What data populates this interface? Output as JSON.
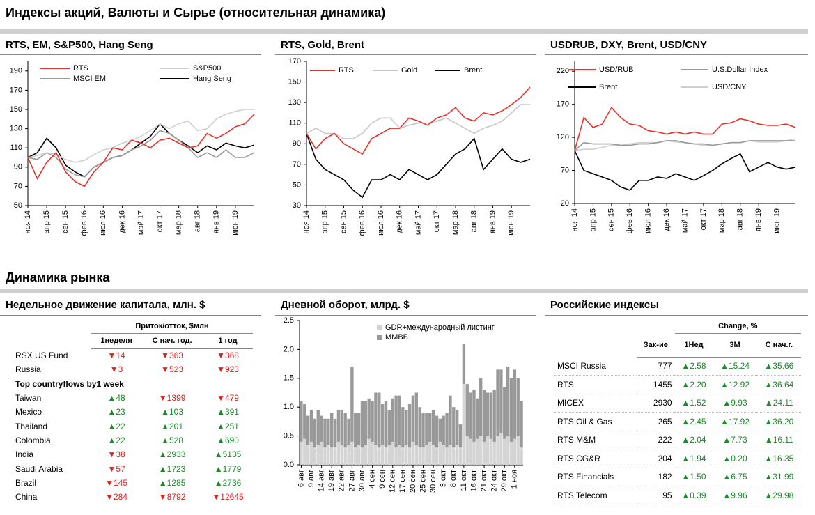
{
  "title": "Индексы акций, Валюты и  Сырье (относительная динамика)",
  "section_title": "Динамика рынка",
  "chart_data": [
    {
      "type": "line",
      "title": "RTS, EM, S&P500, Hang Seng",
      "categories": [
        "ноя 14",
        null,
        "апр 15",
        null,
        "сен 15",
        null,
        "фев 16",
        null,
        "июл 16",
        null,
        "дек 16",
        null,
        "май 17",
        null,
        "окт 17",
        null,
        "мар 18",
        null,
        "авг 18",
        null,
        "янв 19",
        null,
        "июн 19",
        null,
        null
      ],
      "ylim": [
        50,
        200
      ],
      "yticks": [
        50,
        70,
        90,
        110,
        130,
        150,
        170,
        190
      ],
      "series": [
        {
          "name": "RTS",
          "color": "#e8322b",
          "values": [
            100,
            78,
            95,
            105,
            85,
            75,
            70,
            85,
            95,
            110,
            108,
            118,
            115,
            110,
            118,
            120,
            115,
            110,
            112,
            125,
            120,
            125,
            132,
            135,
            145
          ]
        },
        {
          "name": "S&P500",
          "color": "#d0d0d0",
          "values": [
            100,
            102,
            105,
            103,
            98,
            95,
            97,
            103,
            108,
            110,
            115,
            118,
            122,
            128,
            135,
            130,
            135,
            138,
            128,
            130,
            140,
            145,
            148,
            150,
            150
          ]
        },
        {
          "name": "MSCI EM",
          "color": "#999999",
          "values": [
            100,
            98,
            105,
            100,
            88,
            82,
            80,
            90,
            95,
            100,
            102,
            108,
            112,
            118,
            128,
            125,
            118,
            110,
            100,
            105,
            100,
            108,
            100,
            100,
            105
          ]
        },
        {
          "name": "Hang Seng",
          "color": "#000000",
          "values": [
            100,
            105,
            120,
            110,
            92,
            85,
            80,
            90,
            95,
            100,
            102,
            108,
            115,
            122,
            135,
            125,
            118,
            112,
            105,
            112,
            108,
            115,
            112,
            110,
            113
          ]
        }
      ]
    },
    {
      "type": "line",
      "title": "RTS, Gold, Brent",
      "categories": [
        "ноя 14",
        null,
        "апр 15",
        null,
        "сен 15",
        null,
        "фев 16",
        null,
        "июл 16",
        null,
        "дек 16",
        null,
        "май 17",
        null,
        "окт 17",
        null,
        "мар 18",
        null,
        "авг 18",
        null,
        "янв 19",
        null,
        "июн 19",
        null,
        null
      ],
      "ylim": [
        30,
        170
      ],
      "yticks": [
        30,
        50,
        70,
        90,
        110,
        130,
        150,
        170
      ],
      "series": [
        {
          "name": "RTS",
          "color": "#e8322b",
          "values": [
            100,
            85,
            95,
            100,
            90,
            85,
            80,
            95,
            100,
            105,
            105,
            115,
            112,
            108,
            115,
            118,
            125,
            115,
            112,
            120,
            118,
            122,
            128,
            135,
            145
          ]
        },
        {
          "name": "Gold",
          "color": "#c8c8c8",
          "values": [
            100,
            105,
            100,
            100,
            95,
            95,
            100,
            110,
            115,
            115,
            105,
            108,
            110,
            110,
            112,
            115,
            110,
            105,
            100,
            105,
            108,
            112,
            120,
            128,
            128
          ]
        },
        {
          "name": "Brent",
          "color": "#000000",
          "values": [
            100,
            75,
            65,
            60,
            55,
            45,
            38,
            55,
            55,
            60,
            55,
            65,
            60,
            55,
            60,
            70,
            80,
            85,
            95,
            65,
            75,
            85,
            75,
            72,
            75
          ]
        }
      ]
    },
    {
      "type": "line",
      "title": "USDRUB, DXY, Brent, USD/CNY",
      "categories": [
        "ноя 14",
        null,
        "апр 15",
        null,
        "сен 15",
        null,
        "фев 16",
        null,
        "июл 16",
        null,
        "дек 16",
        null,
        "май 17",
        null,
        "окт 17",
        null,
        "мар 18",
        null,
        "авг 18",
        null,
        "янв 19",
        null,
        "июн 19",
        null,
        null
      ],
      "ylim": [
        20,
        235
      ],
      "yticks": [
        20,
        70,
        120,
        170,
        220
      ],
      "series": [
        {
          "name": "USD/RUB",
          "color": "#e8322b",
          "values": [
            100,
            150,
            135,
            140,
            165,
            150,
            140,
            138,
            130,
            128,
            125,
            128,
            125,
            128,
            125,
            125,
            140,
            142,
            148,
            145,
            140,
            138,
            138,
            140,
            135
          ]
        },
        {
          "name": "U.S.Dollar Index",
          "color": "#999999",
          "values": [
            100,
            112,
            110,
            110,
            110,
            108,
            108,
            110,
            110,
            112,
            115,
            115,
            112,
            110,
            110,
            108,
            110,
            112,
            112,
            115,
            115,
            115,
            115,
            115,
            115
          ]
        },
        {
          "name": "Brent",
          "color": "#000000",
          "values": [
            100,
            70,
            65,
            60,
            55,
            45,
            40,
            55,
            55,
            60,
            58,
            65,
            60,
            55,
            62,
            70,
            80,
            88,
            95,
            68,
            75,
            82,
            75,
            72,
            75
          ]
        },
        {
          "name": "USD/CNY",
          "color": "#d0d0d0",
          "values": [
            100,
            102,
            102,
            105,
            108,
            108,
            110,
            112,
            112,
            112,
            115,
            113,
            112,
            110,
            108,
            108,
            110,
            112,
            112,
            115,
            113,
            113,
            113,
            115,
            118
          ]
        }
      ]
    },
    {
      "type": "bar",
      "stacked": true,
      "title": "Дневной оборот, млрд. $",
      "categories": [
        "6 авг",
        null,
        null,
        "9 авг",
        null,
        null,
        "14 авг",
        null,
        null,
        "19 авг",
        null,
        null,
        "22 авг",
        null,
        null,
        "27 авг",
        null,
        null,
        "30 авг",
        null,
        null,
        "4 сен",
        null,
        null,
        "9 сен",
        null,
        null,
        "12 сен",
        null,
        null,
        "17 сен",
        null,
        null,
        "20 сен",
        null,
        null,
        "25 сен",
        null,
        null,
        "30 сен",
        null,
        null,
        "3 окт",
        null,
        null,
        "8 окт",
        null,
        null,
        "11 окт",
        null,
        null,
        "16 окт",
        null,
        null,
        "21 окт",
        null,
        null,
        "24 окт",
        null,
        null,
        "29 окт",
        null,
        null,
        "1 ноя",
        null,
        null
      ],
      "ylim": [
        0,
        2.5
      ],
      "yticks": [
        {
          "value": 0,
          "label": "0.0"
        },
        0.5,
        {
          "value": 1,
          "label": "1.0"
        },
        1.5,
        {
          "value": 2,
          "label": "2.0"
        },
        2.5
      ],
      "series": [
        {
          "name": "GDR+международный  листинг",
          "color": "#d4d4d4",
          "values": [
            0.4,
            0.45,
            0.35,
            0.4,
            0.3,
            0.35,
            0.4,
            0.3,
            0.35,
            0.3,
            0.3,
            0.4,
            0.35,
            0.3,
            0.35,
            0.4,
            0.3,
            0.35,
            0.3,
            0.35,
            0.45,
            0.4,
            0.35,
            0.3,
            0.35,
            0.3,
            0.35,
            0.4,
            0.3,
            0.35,
            0.3,
            0.35,
            0.3,
            0.4,
            0.35,
            0.3,
            0.3,
            0.35,
            0.4,
            0.35,
            0.3,
            0.4,
            0.35,
            0.3,
            0.35,
            0.3,
            0.35,
            0.3,
            1.4,
            0.5,
            0.45,
            0.4,
            0.45,
            0.5,
            0.4,
            0.5,
            0.45,
            0.4,
            0.5,
            0.55,
            0.45,
            0.5,
            0.4,
            0.45,
            0.5,
            0.3
          ]
        },
        {
          "name": "ММВБ",
          "color": "#999999",
          "values": [
            0.7,
            0.6,
            0.5,
            0.55,
            0.5,
            0.6,
            0.45,
            0.5,
            0.45,
            0.6,
            0.5,
            0.55,
            0.6,
            0.6,
            0.45,
            1.3,
            0.6,
            0.55,
            0.8,
            0.75,
            0.7,
            0.7,
            0.9,
            0.95,
            0.7,
            0.8,
            0.6,
            0.75,
            0.9,
            0.85,
            0.7,
            0.6,
            0.75,
            0.8,
            0.9,
            0.7,
            0.6,
            0.55,
            0.5,
            0.6,
            0.55,
            0.4,
            0.5,
            0.6,
            0.85,
            0.7,
            0.6,
            0.4,
            0.7,
            0.9,
            0.8,
            0.9,
            0.7,
            1.0,
            0.9,
            0.75,
            0.8,
            0.9,
            1.15,
            1.1,
            0.9,
            1.2,
            1.1,
            1.2,
            1.0,
            0.8
          ]
        }
      ]
    }
  ],
  "flows_table": {
    "title": "Недельное движение капитала, млн. $",
    "group_header": "Приток/отток, $млн",
    "columns": [
      "1неделя",
      "С нач. год.",
      "1 год"
    ],
    "rows_a": [
      {
        "label": "RSX US Fund",
        "values": [
          "▼14",
          "▼363",
          "▼368"
        ]
      },
      {
        "label": "Russia",
        "values": [
          "▼3",
          "▼523",
          "▼923"
        ]
      }
    ],
    "subheading": "Top countryflows by1 week",
    "rows_b": [
      {
        "label": "Taiwan",
        "values": [
          "▲48",
          "▼1399",
          "▼479"
        ]
      },
      {
        "label": "Mexico",
        "values": [
          "▲23",
          "▲103",
          "▲391"
        ]
      },
      {
        "label": "Thailand",
        "values": [
          "▲22",
          "▲201",
          "▲251"
        ]
      },
      {
        "label": "Colombia",
        "values": [
          "▲22",
          "▲528",
          "▲690"
        ]
      },
      {
        "label": "India",
        "values": [
          "▼38",
          "▲2933",
          "▲5135"
        ]
      },
      {
        "label": "Saudi Arabia",
        "values": [
          "▼57",
          "▲1723",
          "▲1779"
        ]
      },
      {
        "label": "Brazil",
        "values": [
          "▼145",
          "▲1285",
          "▲2736"
        ]
      },
      {
        "label": "China",
        "values": [
          "▼284",
          "▼8792",
          "▼12645"
        ]
      }
    ]
  },
  "indices_table": {
    "title": "Российские индексы",
    "group_header": "Change, %",
    "columns": [
      "Зак-ие",
      "1Нед",
      "3М",
      "С нач.г."
    ],
    "rows": [
      {
        "label": "MSCI Russia",
        "values": [
          "777",
          "▲2.58",
          "▲15.24",
          "▲35.66"
        ]
      },
      {
        "label": "RTS",
        "values": [
          "1455",
          "▲2.20",
          "▲12.92",
          "▲36.64"
        ]
      },
      {
        "label": "MICEX",
        "values": [
          "2930",
          "▲1.52",
          "▲9.93",
          "▲24.11"
        ]
      },
      {
        "label": "RTS Oil & Gas",
        "values": [
          "265",
          "▲2.45",
          "▲17.92",
          "▲36.20"
        ]
      },
      {
        "label": "RTS M&M",
        "values": [
          "222",
          "▲2.04",
          "▲7.73",
          "▲16.11"
        ]
      },
      {
        "label": "RTS CG&R",
        "values": [
          "204",
          "▲1.94",
          "▲0.20",
          "▲16.35"
        ]
      },
      {
        "label": "RTS Financials",
        "values": [
          "182",
          "▲1.50",
          "▲6.75",
          "▲31.99"
        ]
      },
      {
        "label": "RTS Telecom",
        "values": [
          "95",
          "▲0.39",
          "▲9.96",
          "▲29.98"
        ]
      }
    ]
  }
}
